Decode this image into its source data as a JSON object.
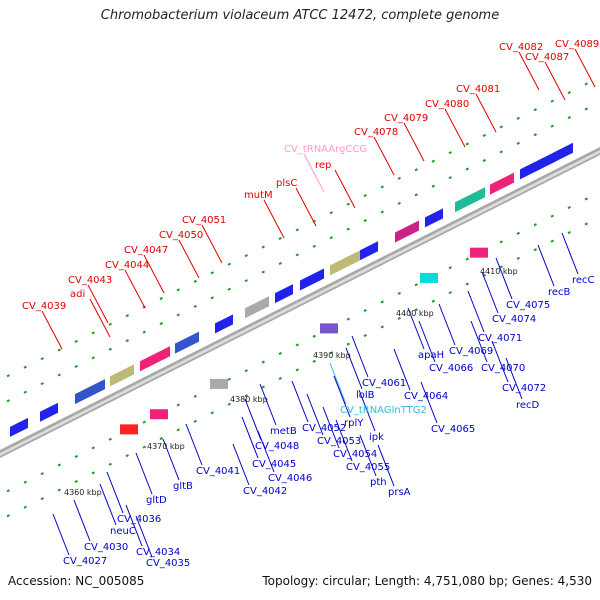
{
  "title": "Chromobacterium violaceum ATCC 12472, complete genome",
  "accession": "Accession: NC_005085",
  "stats": "Topology: circular; Length: 4,751,080 bp; Genes: 4,530",
  "colors": {
    "upper_label": "#e00000",
    "lower_label": "#0000cc",
    "trna_upper": "#ff99cc",
    "trna_lower": "#33bbdd",
    "backbone": "#888888",
    "tick": "#229922"
  },
  "kbp_labels": [
    "4360 kbp",
    "4370 kbp",
    "4380 kbp",
    "4390 kbp",
    "4400 kbp",
    "4410 kbp"
  ],
  "upper_labels": [
    "CV_4082",
    "CV_4089",
    "CV_4087",
    "CV_4081",
    "CV_4080",
    "CV_4079",
    "CV_4078",
    "CV_tRNAArgCCG",
    "rep",
    "plsC",
    "mutM",
    "CV_4051",
    "CV_4050",
    "CV_4047",
    "CV_4044",
    "CV_4043",
    "adi",
    "CV_4039"
  ],
  "lower_labels": [
    "recC",
    "recB",
    "CV_4075",
    "CV_4074",
    "CV_4071",
    "CV_4069",
    "CV_4070",
    "CV_4072",
    "recD",
    "apaH",
    "CV_4066",
    "CV_4064",
    "CV_4065",
    "CV_4061",
    "lolB",
    "CV_tRNAGlnTTG2",
    "rplY",
    "ipk",
    "CV_4052",
    "CV_4053",
    "CV_4054",
    "CV_4055",
    "pth",
    "prsA",
    "metB",
    "CV_4048",
    "CV_4045",
    "CV_4046",
    "CV_4041",
    "CV_4042",
    "gltB",
    "gltD",
    "CV_4036",
    "neuC",
    "CV_4034",
    "CV_4035",
    "CV_4030",
    "CV_4027"
  ]
}
